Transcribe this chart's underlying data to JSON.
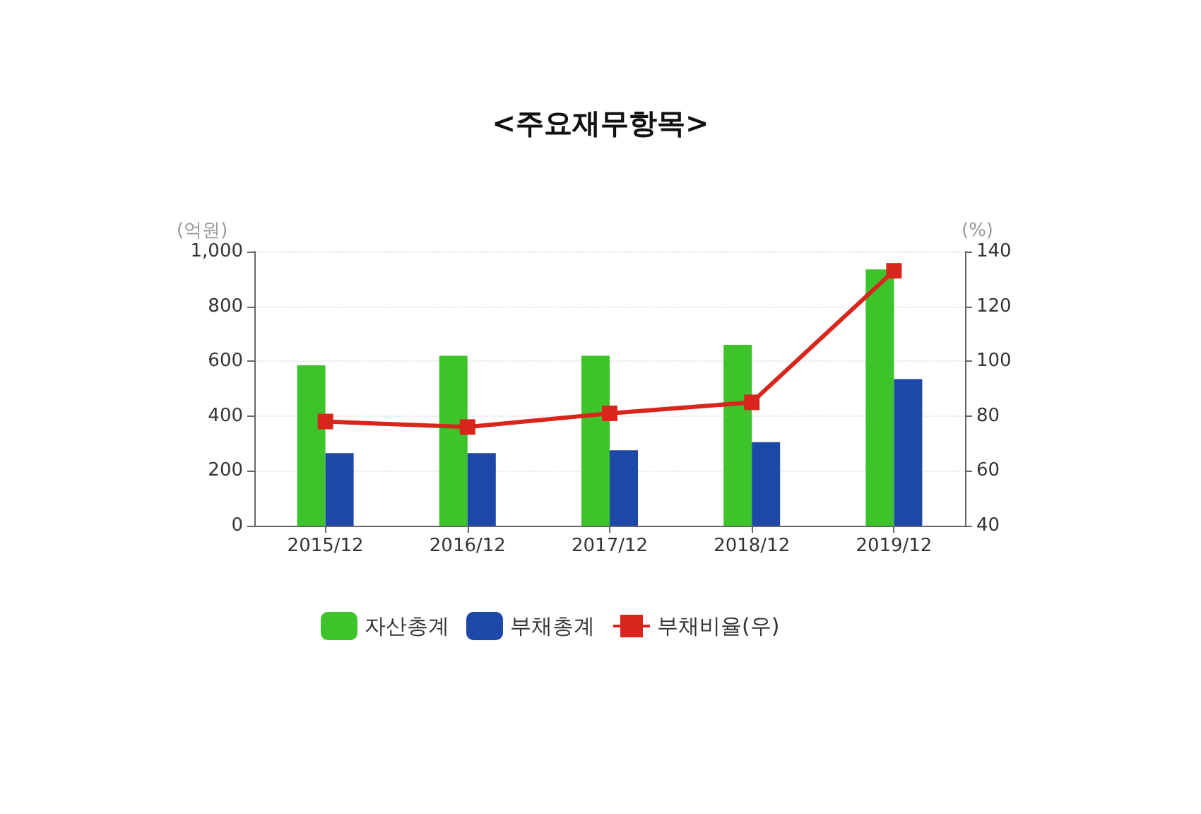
{
  "chart_data": {
    "type": "bar",
    "title": "<주요재무항목>",
    "ylabel": "(억원)",
    "y2label": "(%)",
    "categories": [
      "2015/12",
      "2016/12",
      "2017/12",
      "2018/12",
      "2019/12"
    ],
    "series": [
      {
        "name": "자산총계",
        "color": "#3cc42a",
        "values": [
          585,
          620,
          620,
          660,
          935
        ]
      },
      {
        "name": "부채총계",
        "color": "#1e48a8",
        "values": [
          265,
          265,
          275,
          305,
          535
        ]
      },
      {
        "name": "부채비율(우)",
        "type": "line",
        "axis": "y2",
        "color": "#d9261c",
        "marker": "square",
        "values": [
          78,
          76,
          81,
          85,
          133
        ]
      }
    ],
    "ylim": [
      0,
      1000
    ],
    "yticks": [
      0,
      200,
      400,
      600,
      800,
      {
        "value": 1000,
        "label": "1,000"
      }
    ],
    "y2lim": [
      40,
      140
    ],
    "y2ticks": [
      40,
      60,
      80,
      100,
      120,
      140
    ],
    "grid": "y",
    "legend": "bottom"
  }
}
